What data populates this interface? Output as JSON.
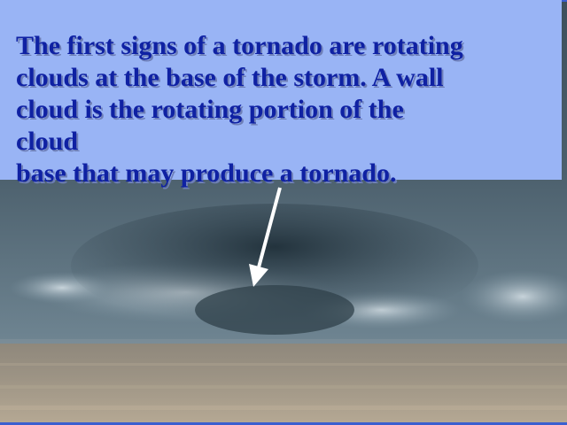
{
  "caption": {
    "lines": [
      "The first signs of a tornado are rotating",
      "clouds at the base of the storm. A wall",
      "cloud is the rotating portion of the",
      "cloud",
      "base that may produce a tornado."
    ]
  },
  "colors": {
    "caption_text": "#0f21a3",
    "caption_panel": "#99b4f5",
    "frame": "#3a5fd0",
    "arrow": "#ffffff"
  },
  "icons": {
    "pointer": "arrow-icon"
  }
}
